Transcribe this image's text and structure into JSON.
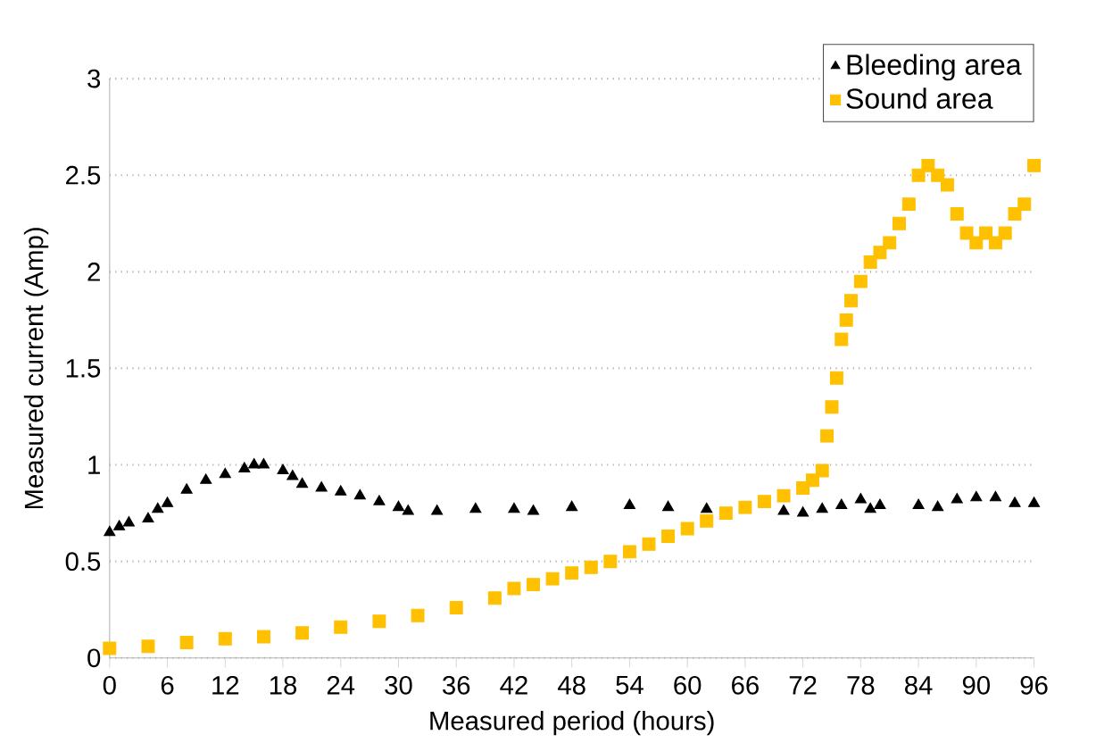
{
  "chart_data": {
    "type": "scatter",
    "xlabel": "Measured period (hours)",
    "ylabel": "Measured current (Amp)",
    "xlim": [
      0,
      96
    ],
    "xticks": [
      0,
      6,
      12,
      18,
      24,
      30,
      36,
      42,
      48,
      54,
      60,
      66,
      72,
      78,
      84,
      90,
      96
    ],
    "ylim": [
      0,
      3
    ],
    "yticks": [
      0,
      0.5,
      1,
      1.5,
      2,
      2.5,
      3
    ],
    "grid": "y",
    "legend": "top right",
    "series": [
      {
        "name": "Bleeding area",
        "color": "#000000",
        "marker": "triangle",
        "x": [
          0,
          1,
          2,
          4,
          5,
          6,
          8,
          10,
          12,
          14,
          15,
          16,
          18,
          19,
          20,
          22,
          24,
          26,
          28,
          30,
          31,
          34,
          38,
          42,
          44,
          48,
          54,
          58,
          62,
          70,
          72,
          74,
          76,
          78,
          79,
          80,
          84,
          86,
          88,
          90,
          92,
          94,
          96
        ],
        "values": [
          0.65,
          0.68,
          0.7,
          0.72,
          0.77,
          0.8,
          0.87,
          0.92,
          0.95,
          0.98,
          1.0,
          1.0,
          0.97,
          0.94,
          0.9,
          0.88,
          0.86,
          0.84,
          0.81,
          0.78,
          0.76,
          0.76,
          0.77,
          0.77,
          0.76,
          0.78,
          0.79,
          0.78,
          0.77,
          0.76,
          0.75,
          0.77,
          0.79,
          0.82,
          0.77,
          0.79,
          0.79,
          0.78,
          0.82,
          0.83,
          0.83,
          0.8,
          0.8
        ]
      },
      {
        "name": "Sound area",
        "color": "#ffc000",
        "marker": "square",
        "x": [
          0,
          4,
          8,
          12,
          16,
          20,
          24,
          28,
          32,
          36,
          40,
          42,
          44,
          46,
          48,
          50,
          52,
          54,
          56,
          58,
          60,
          62,
          64,
          66,
          68,
          70,
          72,
          73,
          74,
          74.5,
          75,
          75.5,
          76,
          76.5,
          77,
          78,
          79,
          80,
          81,
          82,
          83,
          84,
          85,
          86,
          87,
          88,
          89,
          90,
          91,
          92,
          93,
          94,
          95,
          96
        ],
        "values": [
          0.05,
          0.06,
          0.08,
          0.1,
          0.11,
          0.13,
          0.16,
          0.19,
          0.22,
          0.26,
          0.31,
          0.36,
          0.38,
          0.41,
          0.44,
          0.47,
          0.5,
          0.55,
          0.59,
          0.63,
          0.67,
          0.71,
          0.75,
          0.78,
          0.81,
          0.84,
          0.88,
          0.92,
          0.97,
          1.15,
          1.3,
          1.45,
          1.65,
          1.75,
          1.85,
          1.95,
          2.05,
          2.1,
          2.15,
          2.25,
          2.35,
          2.5,
          2.55,
          2.5,
          2.45,
          2.3,
          2.2,
          2.15,
          2.2,
          2.15,
          2.2,
          2.3,
          2.35,
          2.55
        ]
      }
    ]
  }
}
